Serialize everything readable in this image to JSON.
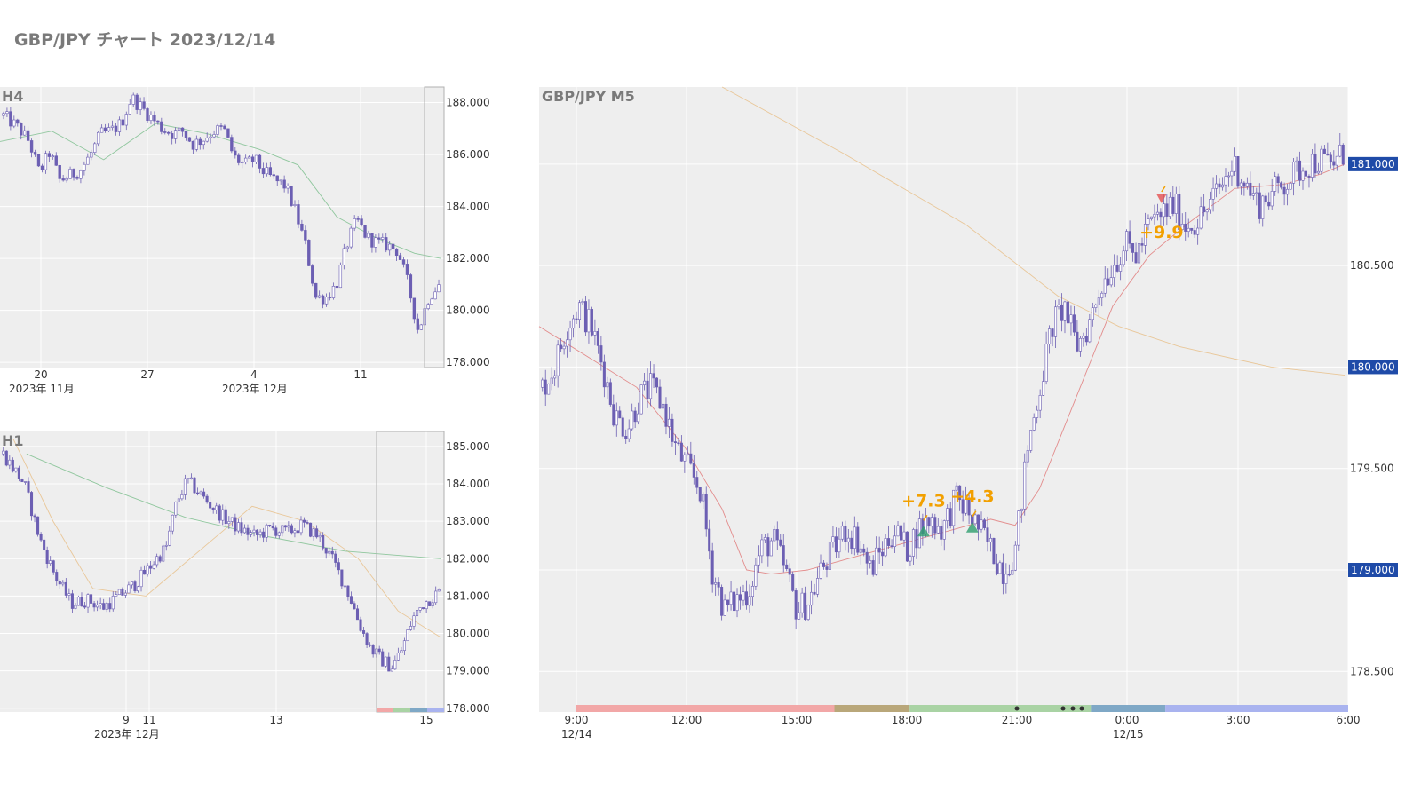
{
  "page": {
    "title": "GBP/JPY チャート 2023/12/14"
  },
  "colors": {
    "candle": "#6c5fb3",
    "plot_bg": "#eeeeee",
    "grid": "#ffffff",
    "axis_text": "#333333",
    "panel_label": "#7a7a7a",
    "price_tag_bg": "#1f4ba8",
    "price_tag_text": "#ffffff",
    "ma_fast": "#e07a7a",
    "ma_slow": "#e8c08a",
    "ma_green": "#7fbf8f",
    "trade_label": "#f2a000",
    "buy_marker": "#2e9e6e",
    "sell_marker": "#e55050"
  },
  "chart_data": [
    {
      "type": "candlestick",
      "panel": "H4",
      "label": "H4",
      "y_ticks": [
        "188.000",
        "186.000",
        "184.000",
        "182.000",
        "180.000",
        "178.000"
      ],
      "y_tick_values": [
        188,
        186,
        184,
        182,
        180,
        178
      ],
      "ylim": [
        177.8,
        188.6
      ],
      "x_ticks": [
        "20",
        "27",
        "4",
        "11"
      ],
      "x_sublabels": [
        "2023年 11月",
        "2023年 12月"
      ],
      "approx_close_path": [
        [
          0,
          187.5
        ],
        [
          6,
          187.0
        ],
        [
          10,
          186.5
        ],
        [
          14,
          185.3
        ],
        [
          18,
          186.1
        ],
        [
          22,
          185.0
        ],
        [
          26,
          185.2
        ],
        [
          30,
          185.4
        ],
        [
          34,
          186.0
        ],
        [
          38,
          186.8
        ],
        [
          42,
          186.9
        ],
        [
          46,
          187.2
        ],
        [
          50,
          188.2
        ],
        [
          54,
          187.8
        ],
        [
          58,
          187.4
        ],
        [
          62,
          187.0
        ],
        [
          66,
          186.8
        ],
        [
          70,
          186.9
        ],
        [
          74,
          186.4
        ],
        [
          78,
          186.6
        ],
        [
          82,
          186.9
        ],
        [
          86,
          187.0
        ],
        [
          90,
          185.9
        ],
        [
          94,
          185.6
        ],
        [
          98,
          185.8
        ],
        [
          102,
          185.3
        ],
        [
          106,
          185.0
        ],
        [
          110,
          184.8
        ],
        [
          114,
          183.8
        ],
        [
          118,
          182.5
        ],
        [
          122,
          180.5
        ],
        [
          126,
          180.5
        ],
        [
          130,
          181.0
        ],
        [
          134,
          182.5
        ],
        [
          138,
          183.5
        ],
        [
          142,
          182.8
        ],
        [
          146,
          182.6
        ],
        [
          150,
          182.5
        ],
        [
          154,
          182.3
        ],
        [
          158,
          181.0
        ],
        [
          162,
          179.2
        ],
        [
          166,
          180.5
        ],
        [
          170,
          181.0
        ]
      ],
      "ma_green_path": [
        [
          0,
          186.5
        ],
        [
          20,
          186.9
        ],
        [
          40,
          185.8
        ],
        [
          60,
          187.2
        ],
        [
          80,
          186.8
        ],
        [
          100,
          186.2
        ],
        [
          115,
          185.6
        ],
        [
          130,
          183.6
        ],
        [
          145,
          182.8
        ],
        [
          160,
          182.2
        ],
        [
          170,
          182.0
        ]
      ]
    },
    {
      "type": "candlestick",
      "panel": "H1",
      "label": "H1",
      "y_ticks": [
        "185.000",
        "184.000",
        "183.000",
        "182.000",
        "181.000",
        "180.000",
        "179.000",
        "178.000"
      ],
      "y_tick_values": [
        185,
        184,
        183,
        182,
        181,
        180,
        179,
        178
      ],
      "ylim": [
        177.9,
        185.4
      ],
      "x_ticks": [
        "9",
        "11",
        "13",
        "15"
      ],
      "x_sublabels": [
        "2023年 12月"
      ],
      "approx_close_path": [
        [
          0,
          184.8
        ],
        [
          8,
          184.0
        ],
        [
          14,
          182.5
        ],
        [
          20,
          181.5
        ],
        [
          26,
          180.8
        ],
        [
          32,
          180.9
        ],
        [
          38,
          180.7
        ],
        [
          44,
          181.0
        ],
        [
          50,
          181.3
        ],
        [
          56,
          181.8
        ],
        [
          62,
          182.3
        ],
        [
          66,
          183.5
        ],
        [
          70,
          184.1
        ],
        [
          74,
          183.8
        ],
        [
          78,
          183.5
        ],
        [
          84,
          183.1
        ],
        [
          90,
          182.8
        ],
        [
          96,
          182.6
        ],
        [
          102,
          182.8
        ],
        [
          108,
          182.7
        ],
        [
          114,
          182.9
        ],
        [
          120,
          182.6
        ],
        [
          126,
          181.9
        ],
        [
          132,
          181.0
        ],
        [
          136,
          180.2
        ],
        [
          140,
          179.6
        ],
        [
          144,
          179.3
        ],
        [
          148,
          179.1
        ],
        [
          152,
          179.6
        ],
        [
          156,
          180.4
        ],
        [
          160,
          180.8
        ],
        [
          166,
          181.1
        ]
      ],
      "ma_green_path": [
        [
          10,
          184.8
        ],
        [
          40,
          183.9
        ],
        [
          70,
          183.1
        ],
        [
          100,
          182.6
        ],
        [
          130,
          182.2
        ],
        [
          166,
          182.0
        ]
      ],
      "ma_slow_path": [
        [
          5,
          185.2
        ],
        [
          20,
          183.0
        ],
        [
          35,
          181.2
        ],
        [
          55,
          181.0
        ],
        [
          75,
          182.2
        ],
        [
          95,
          183.4
        ],
        [
          115,
          183.0
        ],
        [
          135,
          182.0
        ],
        [
          150,
          180.6
        ],
        [
          166,
          179.9
        ]
      ]
    },
    {
      "type": "candlestick",
      "panel": "M5",
      "label": "GBP/JPY M5",
      "y_ticks": [
        "181.000",
        "180.500",
        "180.000",
        "179.500",
        "179.000",
        "178.500"
      ],
      "y_tick_values": [
        181.0,
        180.5,
        180.0,
        179.5,
        179.0,
        178.5
      ],
      "highlighted_ticks": [
        "181.000",
        "180.000",
        "179.000"
      ],
      "ylim": [
        178.3,
        181.38
      ],
      "x_ticks": [
        "9:00",
        "12:00",
        "15:00",
        "18:00",
        "21:00",
        "0:00",
        "3:00",
        "6:00"
      ],
      "x_sublabels": [
        "12/14",
        "12/15"
      ],
      "approx_close_path": [
        [
          0,
          179.9
        ],
        [
          4,
          180.0
        ],
        [
          8,
          180.2
        ],
        [
          12,
          180.3
        ],
        [
          16,
          180.2
        ],
        [
          20,
          180.0
        ],
        [
          24,
          179.75
        ],
        [
          28,
          179.7
        ],
        [
          32,
          179.85
        ],
        [
          36,
          179.9
        ],
        [
          40,
          179.8
        ],
        [
          44,
          179.6
        ],
        [
          48,
          179.5
        ],
        [
          52,
          179.4
        ],
        [
          56,
          179.0
        ],
        [
          60,
          178.8
        ],
        [
          64,
          178.85
        ],
        [
          68,
          178.9
        ],
        [
          72,
          179.1
        ],
        [
          76,
          179.15
        ],
        [
          80,
          179.0
        ],
        [
          84,
          178.8
        ],
        [
          88,
          178.85
        ],
        [
          92,
          179.0
        ],
        [
          96,
          179.1
        ],
        [
          100,
          179.2
        ],
        [
          104,
          179.15
        ],
        [
          108,
          179.0
        ],
        [
          112,
          179.1
        ],
        [
          116,
          179.2
        ],
        [
          120,
          179.1
        ],
        [
          124,
          179.2
        ],
        [
          128,
          179.25
        ],
        [
          132,
          179.2
        ],
        [
          136,
          179.35
        ],
        [
          140,
          179.3
        ],
        [
          144,
          179.2
        ],
        [
          148,
          179.1
        ],
        [
          152,
          179.0
        ],
        [
          156,
          179.1
        ],
        [
          160,
          179.6
        ],
        [
          164,
          179.9
        ],
        [
          168,
          180.2
        ],
        [
          172,
          180.3
        ],
        [
          176,
          180.1
        ],
        [
          180,
          180.2
        ],
        [
          184,
          180.4
        ],
        [
          188,
          180.5
        ],
        [
          192,
          180.6
        ],
        [
          196,
          180.55
        ],
        [
          200,
          180.7
        ],
        [
          204,
          180.75
        ],
        [
          208,
          180.8
        ],
        [
          212,
          180.7
        ],
        [
          216,
          180.72
        ],
        [
          220,
          180.8
        ],
        [
          224,
          180.9
        ],
        [
          228,
          181.0
        ],
        [
          232,
          180.9
        ],
        [
          236,
          180.8
        ],
        [
          240,
          180.85
        ],
        [
          244,
          180.9
        ],
        [
          248,
          180.95
        ],
        [
          252,
          181.0
        ],
        [
          256,
          181.02
        ],
        [
          260,
          181.0
        ],
        [
          264,
          181.05
        ]
      ],
      "ma_fast_path": [
        [
          0,
          180.2
        ],
        [
          16,
          180.05
        ],
        [
          32,
          179.9
        ],
        [
          48,
          179.6
        ],
        [
          60,
          179.3
        ],
        [
          68,
          179.0
        ],
        [
          76,
          178.98
        ],
        [
          88,
          179.0
        ],
        [
          100,
          179.05
        ],
        [
          112,
          179.1
        ],
        [
          124,
          179.15
        ],
        [
          136,
          179.2
        ],
        [
          148,
          179.25
        ],
        [
          156,
          179.22
        ],
        [
          164,
          179.4
        ],
        [
          176,
          179.85
        ],
        [
          188,
          180.3
        ],
        [
          200,
          180.55
        ],
        [
          212,
          180.7
        ],
        [
          228,
          180.88
        ],
        [
          244,
          180.9
        ],
        [
          256,
          180.95
        ],
        [
          264,
          181.0
        ]
      ],
      "ma_slow_path": [
        [
          60,
          181.4
        ],
        [
          100,
          181.05
        ],
        [
          140,
          180.7
        ],
        [
          170,
          180.35
        ],
        [
          190,
          180.2
        ],
        [
          210,
          180.1
        ],
        [
          240,
          180.0
        ],
        [
          264,
          179.96
        ]
      ],
      "trades": [
        {
          "label": "+7.3",
          "marker": "buy",
          "x": 126,
          "y": 179.2
        },
        {
          "label": "+4.3",
          "marker": "buy",
          "x": 142,
          "y": 179.22
        },
        {
          "label": "+9.9",
          "marker": "sell",
          "x": 204,
          "y": 180.82
        }
      ],
      "session_bar": [
        {
          "from": 0.046,
          "to": 0.365,
          "color": "#f2a7a7"
        },
        {
          "from": 0.365,
          "to": 0.458,
          "color": "#b9a77a"
        },
        {
          "from": 0.458,
          "to": 0.682,
          "color": "#a9d3a4"
        },
        {
          "from": 0.682,
          "to": 0.774,
          "color": "#7fa8c6"
        },
        {
          "from": 0.774,
          "to": 1.0,
          "color": "#a9b3ef"
        }
      ]
    }
  ]
}
